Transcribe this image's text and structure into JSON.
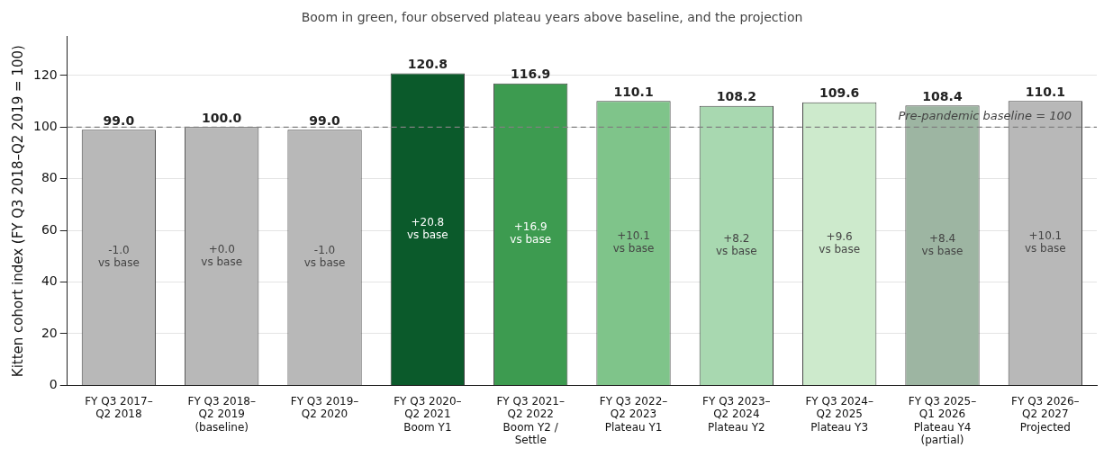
{
  "chart_data": {
    "type": "bar",
    "title": "Boom in green, four observed plateau years above baseline, and the projection",
    "ylabel": "Kitten cohort index (FY Q3 2018–Q2 2019 = 100)",
    "categories": [
      "FY Q3 2017–\nQ2 2018",
      "FY Q3 2018–\nQ2 2019\n(baseline)",
      "FY Q3 2019–\nQ2 2020",
      "FY Q3 2020–\nQ2 2021\nBoom Y1",
      "FY Q3 2021–\nQ2 2022\nBoom Y2 /\nSettle",
      "FY Q3 2022–\nQ2 2023\nPlateau Y1",
      "FY Q3 2023–\nQ2 2024\nPlateau Y2",
      "FY Q3 2024–\nQ2 2025\nPlateau Y3",
      "FY Q3 2025–\nQ1 2026\nPlateau Y4\n(partial)",
      "FY Q3 2026–\nQ2 2027\nProjected"
    ],
    "values": [
      99.0,
      100.0,
      99.0,
      120.8,
      116.9,
      110.1,
      108.2,
      109.6,
      108.4,
      110.1
    ],
    "colors": [
      "#b8b8b8",
      "#b8b8b8",
      "#b8b8b8",
      "#0b5a2b",
      "#3d9b50",
      "#7fc48a",
      "#a8d8b0",
      "#cdeacc",
      "#9db5a2",
      "#b8b8b8"
    ],
    "value_labels": [
      "99.0",
      "100.0",
      "99.0",
      "120.8",
      "116.9",
      "110.1",
      "108.2",
      "109.6",
      "108.4",
      "110.1"
    ],
    "annotations": [
      "-1.0\nvs base",
      "+0.0\nvs base",
      "-1.0\nvs base",
      "+20.8\nvs base",
      "+16.9\nvs base",
      "+10.1\nvs base",
      "+8.2\nvs base",
      "+9.6\nvs base",
      "+8.4\nvs base",
      "+10.1\nvs base"
    ],
    "ref_lines": [
      {
        "axis": "y",
        "value": 100,
        "label": "Pre-pandemic baseline = 100",
        "color": "#808080",
        "line_style": "dashed"
      }
    ],
    "ylim": [
      0,
      135
    ],
    "yticks": [
      0,
      20,
      40,
      60,
      80,
      100,
      120
    ],
    "grid": "y",
    "legend": false
  }
}
